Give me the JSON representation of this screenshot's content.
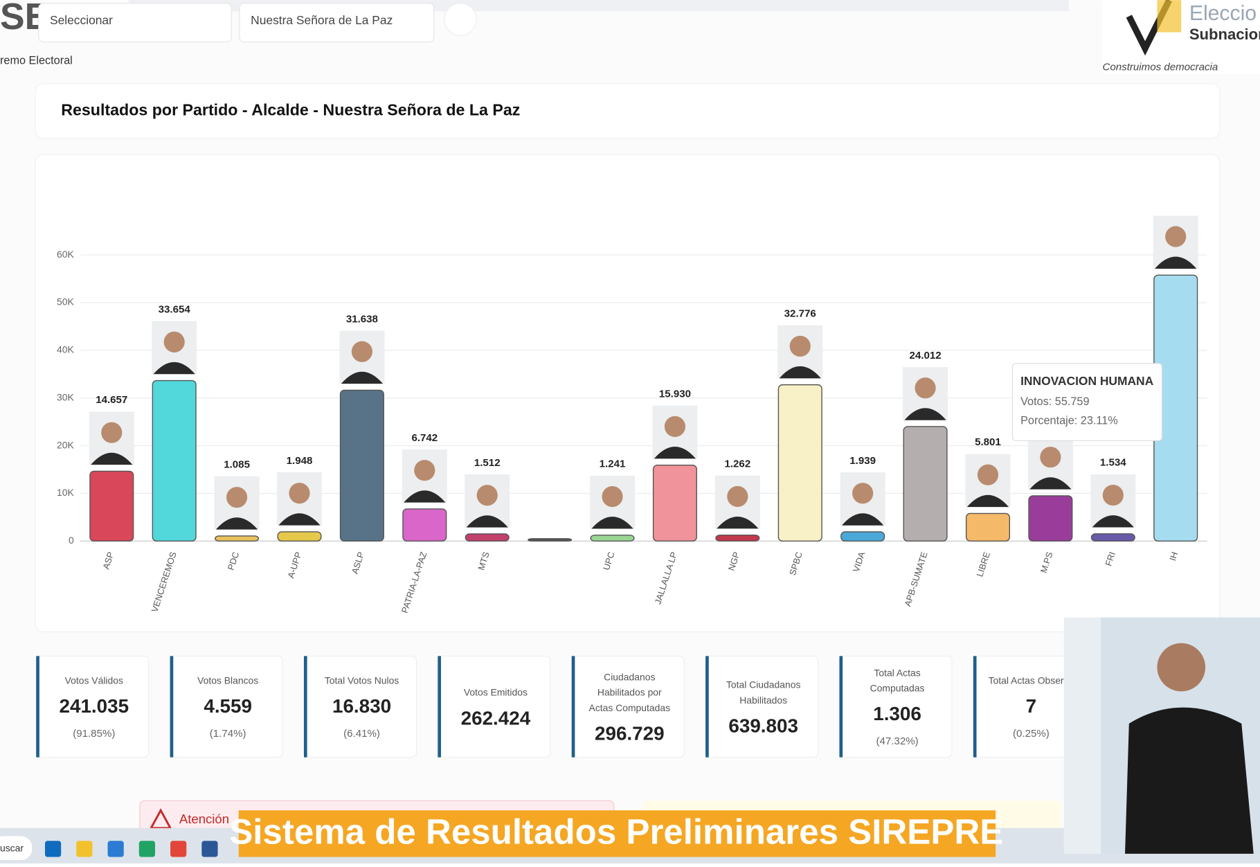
{
  "header": {
    "logo": "SE",
    "logo_caption": "remo Electoral",
    "select_1": "Seleccionar",
    "select_2": "Nuestra Señora de La Paz",
    "brand_1": "Eleccio",
    "brand_2": "Subnacion",
    "brand_tagline": "Construimos democracia"
  },
  "chart_data": {
    "type": "bar",
    "title": "Resultados por Partido - Alcalde - Nuestra Señora de La Paz",
    "categories": [
      "ASP",
      "VENCEREMOS",
      "PDC",
      "A-UPP",
      "ASLP",
      "PATRIA-LA-PAZ",
      "MTS",
      null,
      "UPC",
      "JALLALLA LP",
      "NGP",
      "SPBC",
      "VIDA",
      "APB-SUMATE",
      "LIBRE",
      "M.PS",
      "FRI",
      "IH"
    ],
    "values": [
      14657,
      33654,
      1085,
      1948,
      31638,
      6742,
      1512,
      0,
      1241,
      15930,
      1262,
      32776,
      1939,
      24012,
      5801,
      9500,
      1534,
      55759
    ],
    "value_labels": [
      "14.657",
      "33.654",
      "1.085",
      "1.948",
      "31.638",
      "6.742",
      "1.512",
      null,
      "1.241",
      "15.930",
      "1.262",
      "32.776",
      "1.939",
      "24.012",
      "5.801",
      null,
      "1.534",
      null
    ],
    "colors": [
      "#d9475a",
      "#52d8db",
      "#e8c25e",
      "#e6c84a",
      "#587387",
      "#d966c8",
      "#c2416b",
      "#555555",
      "#9ad693",
      "#f0939a",
      "#c2394d",
      "#f8f0c6",
      "#4aa9d9",
      "#b5aeae",
      "#f5b96a",
      "#9a3d9a",
      "#6a5aaa",
      "#a6dcef"
    ],
    "ylim": [
      0,
      60000
    ],
    "yticks": [
      0,
      {
        "value": 10000,
        "label": "10K"
      },
      {
        "value": 20000,
        "label": "20K"
      },
      {
        "value": 30000,
        "label": "30K"
      },
      {
        "value": 40000,
        "label": "40K"
      },
      {
        "value": 50000,
        "label": "50K"
      },
      {
        "value": 60000,
        "label": "60K"
      }
    ],
    "grid": true,
    "tooltip": {
      "title": "INNOVACION HUMANA",
      "votes": "Votos: 55.759",
      "percent": "Porcentaje: 23.11%"
    }
  },
  "stats": [
    {
      "label": "Votos Válidos",
      "value": "241.035",
      "percent": "(91.85%)"
    },
    {
      "label": "Votos Blancos",
      "value": "4.559",
      "percent": "(1.74%)"
    },
    {
      "label": "Total Votos Nulos",
      "value": "16.830",
      "percent": "(6.41%)"
    },
    {
      "label": "Votos Emitidos",
      "value": "262.424"
    },
    {
      "label": "Ciudadanos Habilitados por Actas Computadas",
      "value": "296.729"
    },
    {
      "label": "Total Ciudadanos Habilitados",
      "value": "639.803"
    },
    {
      "label": "Total Actas Computadas",
      "value": "1.306",
      "percent": "(47.32%)"
    },
    {
      "label": "Total Actas Observa",
      "value": "7",
      "percent": "(0.25%)"
    }
  ],
  "alert": "Atención",
  "banner": "Sistema de Resultados Preliminares SIREPRE",
  "taskbar": {
    "search": "uscar"
  }
}
